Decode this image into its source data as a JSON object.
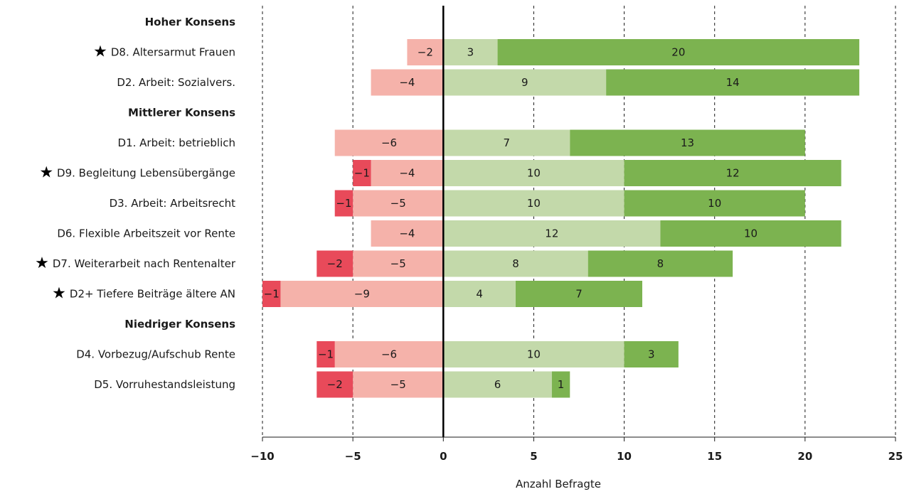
{
  "colors": {
    "strong_negative": "#e84a5a",
    "negative": "#f5b2aa",
    "positive": "#c3d9aa",
    "strong_positive": "#7cb350"
  },
  "chart_data": {
    "type": "bar",
    "orientation": "horizontal",
    "stacked": true,
    "diverging": true,
    "xlabel": "Anzahl Befragte",
    "xlim": [
      -10,
      25
    ],
    "xticks": [
      -10,
      -5,
      0,
      5,
      10,
      15,
      20,
      25
    ],
    "xtick_labels": [
      "−10",
      "−5",
      "0",
      "5",
      "10",
      "15",
      "20",
      "25"
    ],
    "grid": "vertical dashed",
    "star_symbol": "★",
    "groups": [
      {
        "label": "Hoher Konsens",
        "rows": [
          {
            "label": "D8. Altersarmut Frauen",
            "star": true,
            "strong_negative": 0,
            "negative": -2,
            "positive": 3,
            "strong_positive": 20
          },
          {
            "label": "D2. Arbeit: Sozialvers.",
            "star": false,
            "strong_negative": 0,
            "negative": -4,
            "positive": 9,
            "strong_positive": 14
          }
        ]
      },
      {
        "label": "Mittlerer Konsens",
        "rows": [
          {
            "label": "D1. Arbeit: betrieblich",
            "star": false,
            "strong_negative": 0,
            "negative": -6,
            "positive": 7,
            "strong_positive": 13
          },
          {
            "label": "D9. Begleitung Lebensübergänge",
            "star": true,
            "strong_negative": -1,
            "negative": -4,
            "positive": 10,
            "strong_positive": 12
          },
          {
            "label": "D3. Arbeit: Arbeitsrecht",
            "star": false,
            "strong_negative": -1,
            "negative": -5,
            "positive": 10,
            "strong_positive": 10
          },
          {
            "label": "D6. Flexible Arbeitszeit vor Rente",
            "star": false,
            "strong_negative": 0,
            "negative": -4,
            "positive": 12,
            "strong_positive": 10
          },
          {
            "label": "D7. Weiterarbeit nach Rentenalter",
            "star": true,
            "strong_negative": -2,
            "negative": -5,
            "positive": 8,
            "strong_positive": 8
          },
          {
            "label": "D2+ Tiefere Beiträge ältere AN",
            "star": true,
            "strong_negative": -1,
            "negative": -9,
            "positive": 4,
            "strong_positive": 7
          }
        ]
      },
      {
        "label": "Niedriger Konsens",
        "rows": [
          {
            "label": "D4. Vorbezug/Aufschub Rente",
            "star": false,
            "strong_negative": -1,
            "negative": -6,
            "positive": 10,
            "strong_positive": 3
          },
          {
            "label": "D5. Vorruhestandsleistung",
            "star": false,
            "strong_negative": -2,
            "negative": -5,
            "positive": 6,
            "strong_positive": 1
          }
        ]
      }
    ]
  }
}
